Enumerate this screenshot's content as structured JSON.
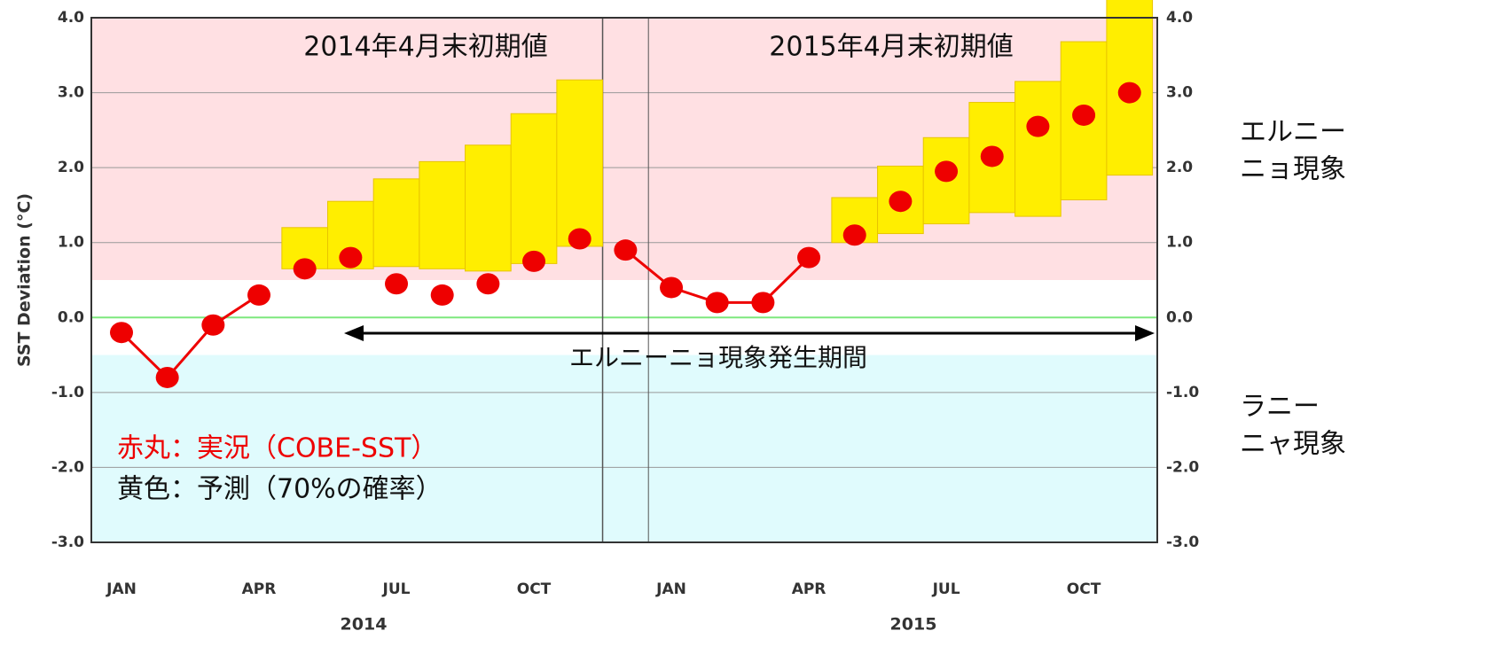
{
  "chart_data": {
    "type": "line",
    "y_label": "SST Deviation (°C)",
    "panel_titles": [
      "2014年4月末初期値",
      "2015年4月末初期値"
    ],
    "categories": [
      "JAN",
      null,
      null,
      "APR",
      null,
      null,
      "JUL",
      null,
      null,
      "OCT",
      null,
      null,
      "JAN",
      null,
      null,
      "APR",
      null,
      null,
      "JUL",
      null,
      null,
      "OCT",
      null
    ],
    "years": [
      "2014",
      "2015"
    ],
    "series": [
      {
        "name": "赤丸：実況（COBE-SST）",
        "color": "#ee0000",
        "values": [
          -0.2,
          -0.8,
          -0.1,
          0.3,
          0.65,
          0.8,
          0.45,
          0.3,
          0.45,
          0.75,
          1.05,
          0.9,
          0.4,
          0.2,
          0.2,
          0.8,
          1.1,
          1.55,
          1.95,
          2.15,
          2.55,
          2.7,
          3.0
        ],
        "line_values": [
          -0.2,
          -0.8,
          -0.1,
          0.3,
          null,
          null,
          null,
          null,
          null,
          null,
          null,
          0.9,
          0.4,
          0.2,
          0.2,
          0.8,
          null,
          null,
          null,
          null,
          null,
          null,
          null
        ]
      },
      {
        "name": "黄色：予測（70%の確率）",
        "color": "#ffee00",
        "low": [
          null,
          null,
          null,
          null,
          0.65,
          0.65,
          0.68,
          0.65,
          0.62,
          0.72,
          0.95,
          null,
          null,
          null,
          null,
          null,
          1.0,
          1.12,
          1.25,
          1.4,
          1.35,
          1.57,
          1.9
        ],
        "high": [
          null,
          null,
          null,
          null,
          1.2,
          1.55,
          1.85,
          2.08,
          2.3,
          2.72,
          3.17,
          null,
          null,
          null,
          null,
          null,
          1.6,
          2.02,
          2.4,
          2.87,
          3.15,
          3.68,
          4.3
        ]
      }
    ],
    "ylim": [
      -3.0,
      4.0
    ],
    "yticks": [
      {
        "value": -3,
        "label": "-3.0"
      },
      {
        "value": -2,
        "label": "-2.0"
      },
      {
        "value": -1,
        "label": "-1.0"
      },
      {
        "value": 0,
        "label": "0.0"
      },
      {
        "value": 1,
        "label": "1.0"
      },
      {
        "value": 2,
        "label": "2.0"
      },
      {
        "value": 3,
        "label": "3.0"
      },
      {
        "value": 4,
        "label": "4.0"
      }
    ],
    "grid": true,
    "el_nino_threshold": 0.5,
    "la_nina_threshold": -0.5,
    "el_nino_label": [
      "エルニー",
      "ニョ現象"
    ],
    "la_nina_label": [
      "ラニー",
      "ニャ現象"
    ],
    "period_label": "エルニーニョ現象発生期間"
  }
}
